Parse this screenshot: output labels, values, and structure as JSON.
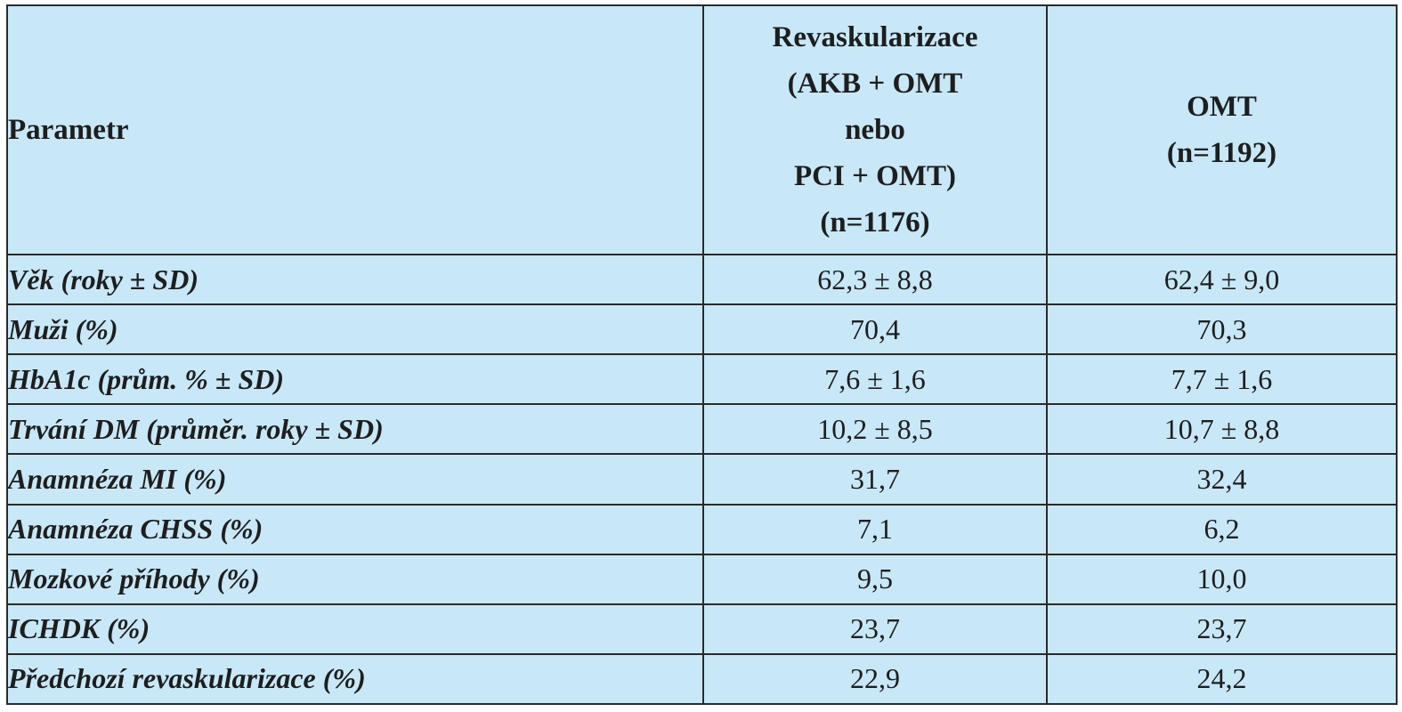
{
  "table": {
    "header": {
      "parameter": "Parametr",
      "revascularization_lines": [
        "Revaskularizace",
        "(AKB + OMT",
        "nebo",
        "PCI + OMT)",
        "(n=1176)"
      ],
      "omt_lines": [
        "OMT",
        "(n=1192)"
      ]
    },
    "rows": [
      {
        "parameter": "Věk (roky ± SD)",
        "revascularization": "62,3 ± 8,8",
        "omt": "62,4 ± 9,0"
      },
      {
        "parameter": "Muži (%)",
        "revascularization": "70,4",
        "omt": "70,3"
      },
      {
        "parameter": "HbA1c (prům. % ± SD)",
        "revascularization": "7,6 ± 1,6",
        "omt": "7,7 ± 1,6"
      },
      {
        "parameter": "Trvání DM (průměr. roky ± SD)",
        "revascularization": "10,2 ± 8,5",
        "omt": "10,7 ± 8,8"
      },
      {
        "parameter": "Anamnéza MI (%)",
        "revascularization": "31,7",
        "omt": "32,4"
      },
      {
        "parameter": "Anamnéza CHSS (%)",
        "revascularization": "7,1",
        "omt": "6,2"
      },
      {
        "parameter": "Mozkové příhody (%)",
        "revascularization": "9,5",
        "omt": "10,0"
      },
      {
        "parameter": "ICHDK (%)",
        "revascularization": "23,7",
        "omt": "23,7"
      },
      {
        "parameter": "Předchozí revaskularizace (%)",
        "revascularization": "22,9",
        "omt": "24,2"
      }
    ]
  }
}
